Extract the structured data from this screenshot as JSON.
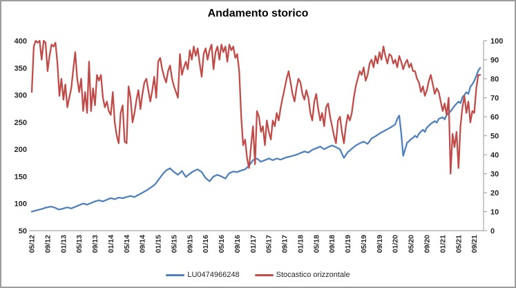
{
  "title": "Andamento storico",
  "legend": [
    {
      "label": "LU0474966248",
      "color": "#4E80BC"
    },
    {
      "label": "Stocastico orizzontale",
      "color": "#BF4C48"
    }
  ],
  "colors": {
    "series_blue": "#4E80BC",
    "series_red": "#BF4C48",
    "axis_line": "#A6A6A6",
    "tick_text": "#262626",
    "background": "#FFFFFF",
    "border": "#9D9D9D"
  },
  "chart_data": {
    "type": "line",
    "title": "Andamento storico",
    "xlabel": "",
    "ylabel_left": "",
    "ylabel_right": "",
    "grid": false,
    "legend_position": "bottom",
    "x_unit": "months since 2012-05",
    "x_start_month": 0,
    "x_step_months": 0.5,
    "x_tick_labels": [
      "05/12",
      "09/12",
      "01/13",
      "05/13",
      "09/13",
      "01/14",
      "05/14",
      "09/14",
      "01/15",
      "05/15",
      "09/15",
      "01/16",
      "05/16",
      "09/16",
      "01/17",
      "05/17",
      "09/17",
      "01/18",
      "05/18",
      "09/18",
      "01/19",
      "05/19",
      "09/19",
      "01/20",
      "05/20",
      "09/20",
      "01/21",
      "05/21",
      "09/21"
    ],
    "x_tick_months": [
      0,
      4,
      8,
      12,
      16,
      20,
      24,
      28,
      32,
      36,
      40,
      44,
      48,
      52,
      56,
      60,
      64,
      68,
      72,
      76,
      80,
      84,
      88,
      92,
      96,
      100,
      104,
      108,
      112
    ],
    "left_axis": {
      "min": 50,
      "max": 400,
      "ticks": [
        50,
        100,
        150,
        200,
        250,
        300,
        350,
        400
      ]
    },
    "right_axis": {
      "min": 0,
      "max": 100,
      "ticks": [
        0,
        10,
        20,
        30,
        40,
        50,
        60,
        70,
        80,
        90,
        100
      ]
    },
    "series": [
      {
        "name": "LU0474966248",
        "axis": "left",
        "color": "#4E80BC",
        "values": [
          85,
          86,
          87,
          88,
          89,
          90,
          91,
          92.5,
          93,
          94,
          94,
          93,
          92,
          90,
          89,
          90,
          91,
          92,
          93,
          92,
          91,
          92.5,
          94,
          95.5,
          97,
          98.5,
          100,
          99,
          98,
          99.5,
          101,
          102.5,
          104,
          105,
          106,
          105,
          104,
          105.5,
          107,
          108.5,
          110,
          109,
          108,
          109.5,
          111,
          110.5,
          110,
          111,
          112,
          113,
          114,
          113,
          112,
          114,
          116,
          118,
          120,
          122,
          124,
          126.5,
          129,
          131.5,
          134,
          138,
          143,
          148,
          153,
          157,
          161,
          163,
          165,
          161.5,
          158,
          155.5,
          153,
          156.5,
          160,
          154.5,
          149,
          152,
          155,
          157.5,
          160,
          161.5,
          163,
          160.5,
          158,
          152.5,
          147,
          144,
          141,
          145.5,
          150,
          151.5,
          153,
          151.5,
          150,
          148,
          146,
          151,
          156,
          157.5,
          159,
          158.5,
          158,
          159.5,
          161,
          162,
          163,
          166.5,
          170,
          175,
          180,
          181.5,
          183,
          180,
          177,
          178.5,
          180,
          181.5,
          183,
          181.5,
          180,
          181.5,
          183,
          182,
          181,
          182.5,
          184,
          185,
          186,
          187,
          188,
          189,
          190,
          191.5,
          193,
          194.5,
          196,
          195,
          194,
          196.5,
          199,
          200.5,
          202,
          203.5,
          205,
          202.5,
          200,
          202,
          204,
          205.5,
          207,
          205.5,
          204,
          202,
          200,
          192,
          184,
          189.5,
          195,
          198,
          201,
          204,
          207,
          209,
          211,
          212.5,
          214,
          212,
          210,
          215,
          220,
          222,
          224,
          226.5,
          229,
          231,
          233,
          235,
          237,
          239,
          241,
          243.5,
          246,
          256,
          262,
          230,
          188,
          200,
          212,
          215,
          219,
          221,
          225,
          222,
          229,
          232.5,
          236,
          232,
          240,
          243.5,
          247,
          249.5,
          252,
          249,
          256,
          257.5,
          259,
          255,
          263,
          266.5,
          270,
          275,
          280,
          284,
          288,
          285,
          296,
          300,
          305,
          302,
          315,
          320,
          326,
          335,
          345,
          350
        ]
      },
      {
        "name": "Stocastico orizzontale",
        "axis": "right",
        "color": "#BF4C48",
        "values": [
          73,
          97,
          100,
          99,
          100,
          90,
          100,
          99,
          84,
          92,
          98,
          97,
          99,
          88,
          71,
          80,
          69,
          77,
          65,
          70,
          75,
          85,
          94,
          80,
          73,
          80,
          63,
          73,
          62,
          89,
          63,
          75,
          66,
          82,
          79,
          82,
          70,
          65,
          68,
          63,
          61,
          73,
          57,
          50,
          46,
          62,
          66,
          47,
          46,
          76,
          70,
          57,
          62,
          69,
          74,
          64,
          72,
          78,
          80,
          74,
          68,
          74,
          81,
          70,
          89,
          91,
          85,
          81,
          78,
          84,
          87,
          80,
          76,
          73,
          70,
          93,
          82,
          86,
          89,
          85,
          95,
          90,
          97,
          92,
          96,
          88,
          81,
          93,
          96,
          90,
          95,
          98,
          85,
          94,
          97,
          90,
          98,
          94,
          97,
          89,
          98,
          95,
          97,
          91,
          93,
          84,
          60,
          45,
          48,
          38,
          33,
          45,
          55,
          35,
          63,
          60,
          52,
          55,
          45,
          58,
          52,
          48,
          58,
          55,
          62,
          58,
          65,
          70,
          75,
          80,
          84,
          78,
          72,
          68,
          75,
          80,
          78,
          72,
          69,
          74,
          70,
          62,
          58,
          68,
          72,
          64,
          58,
          62,
          55,
          65,
          67,
          60,
          55,
          50,
          46,
          58,
          60,
          52,
          46,
          55,
          61,
          58,
          62,
          70,
          76,
          80,
          84,
          82,
          86,
          79,
          82,
          88,
          90,
          86,
          92,
          88,
          94,
          90,
          97,
          92,
          88,
          93,
          92,
          88,
          90,
          86,
          92,
          89,
          85,
          88,
          90,
          86,
          88,
          84,
          84,
          80,
          78,
          73,
          76,
          71,
          74,
          79,
          82,
          77,
          72,
          75,
          73,
          68,
          63,
          67,
          61,
          70,
          30,
          51,
          44,
          52,
          33,
          55,
          65,
          71,
          62,
          68,
          57,
          63,
          62,
          75,
          82,
          82
        ]
      }
    ]
  }
}
